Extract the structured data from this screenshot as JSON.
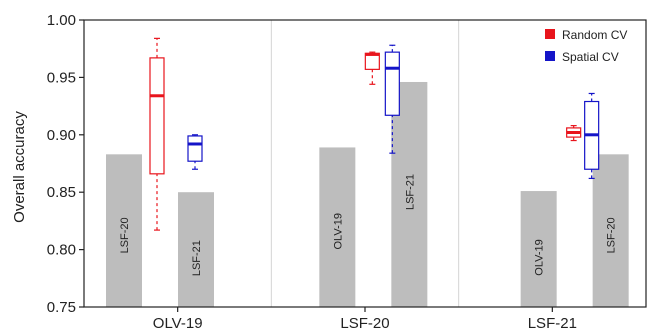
{
  "chart_data": {
    "type": "bar",
    "ylabel": "Overall accuracy",
    "ylim": [
      0.75,
      1.0
    ],
    "yticks": [
      "0.75",
      "0.80",
      "0.85",
      "0.90",
      "0.95",
      "1.00"
    ],
    "grid": "vertical separators between groups",
    "legend_position": "top-right",
    "categories": [
      "OLV-19",
      "LSF-20",
      "LSF-21"
    ],
    "bars": [
      {
        "group": "OLV-19",
        "label": "LSF-20",
        "value": 0.883
      },
      {
        "group": "OLV-19",
        "label": "LSF-21",
        "value": 0.85
      },
      {
        "group": "LSF-20",
        "label": "OLV-19",
        "value": 0.889
      },
      {
        "group": "LSF-20",
        "label": "LSF-21",
        "value": 0.946
      },
      {
        "group": "LSF-21",
        "label": "OLV-19",
        "value": 0.851
      },
      {
        "group": "LSF-21",
        "label": "LSF-20",
        "value": 0.883
      }
    ],
    "boxplot_series": [
      {
        "name": "Random CV",
        "color": "#e8141c",
        "boxes": [
          {
            "group": "OLV-19",
            "whisker_low": 0.817,
            "q1": 0.866,
            "median": 0.934,
            "q3": 0.967,
            "whisker_high": 0.984
          },
          {
            "group": "LSF-20",
            "whisker_low": 0.944,
            "q1": 0.957,
            "median": 0.97,
            "q3": 0.971,
            "whisker_high": 0.972
          },
          {
            "group": "LSF-21",
            "whisker_low": 0.895,
            "q1": 0.898,
            "median": 0.902,
            "q3": 0.906,
            "whisker_high": 0.908
          }
        ]
      },
      {
        "name": "Spatial CV",
        "color": "#1414c8",
        "boxes": [
          {
            "group": "OLV-19",
            "whisker_low": 0.87,
            "q1": 0.877,
            "median": 0.892,
            "q3": 0.899,
            "whisker_high": 0.9
          },
          {
            "group": "LSF-20",
            "whisker_low": 0.884,
            "q1": 0.917,
            "median": 0.958,
            "q3": 0.972,
            "whisker_high": 0.978
          },
          {
            "group": "LSF-21",
            "whisker_low": 0.862,
            "q1": 0.87,
            "median": 0.9,
            "q3": 0.929,
            "whisker_high": 0.936
          }
        ]
      }
    ],
    "bar_color": "#bdbdbd"
  }
}
